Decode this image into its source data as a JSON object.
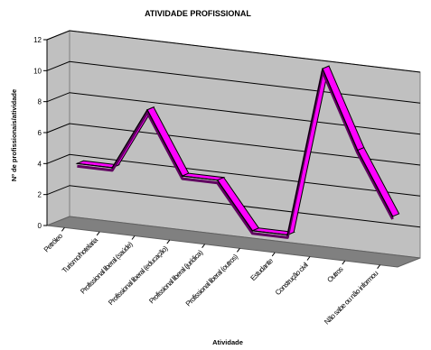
{
  "chart_data": {
    "type": "line",
    "title": "ATIVIDADE PROFISSIONAL",
    "xlabel": "Atividade",
    "ylabel": "Nº de profissionais/atividade",
    "categories": [
      "Petróleo",
      "Turismo/hotelaria",
      "Profissional liberal (saúde)",
      "Profissional liberal (educação)",
      "Profissional liberal (jurídica)",
      "Profissional liberal (outros)",
      "Estudante",
      "Construção civil",
      "Outros",
      "Não sabe ou não informou"
    ],
    "series": [
      {
        "values": [
          4,
          4,
          8,
          4,
          4,
          1,
          1,
          12,
          7,
          3
        ]
      }
    ],
    "ylim": [
      0,
      12
    ],
    "yticks": [
      0,
      2,
      4,
      6,
      8,
      10,
      12
    ],
    "grid": true,
    "three_d": true,
    "colors": {
      "line": "#ff00ff",
      "wall": "#c0c0c0",
      "floor": "#808080",
      "grid": "#000000"
    }
  }
}
